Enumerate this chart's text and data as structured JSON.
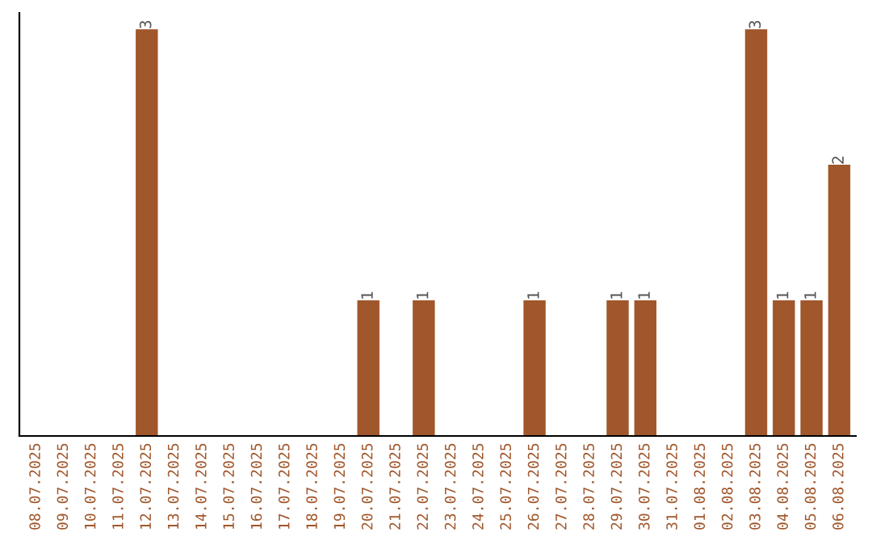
{
  "chart_data": {
    "type": "bar",
    "categories": [
      "08.07.2025",
      "09.07.2025",
      "10.07.2025",
      "11.07.2025",
      "12.07.2025",
      "13.07.2025",
      "14.07.2025",
      "15.07.2025",
      "16.07.2025",
      "17.07.2025",
      "18.07.2025",
      "19.07.2025",
      "20.07.2025",
      "21.07.2025",
      "22.07.2025",
      "23.07.2025",
      "24.07.2025",
      "25.07.2025",
      "26.07.2025",
      "27.07.2025",
      "28.07.2025",
      "29.07.2025",
      "30.07.2025",
      "31.07.2025",
      "01.08.2025",
      "02.08.2025",
      "03.08.2025",
      "04.08.2025",
      "05.08.2025",
      "06.08.2025"
    ],
    "values": [
      0,
      0,
      0,
      0,
      3,
      0,
      0,
      0,
      0,
      0,
      0,
      0,
      1,
      0,
      1,
      0,
      0,
      0,
      1,
      0,
      0,
      1,
      1,
      0,
      0,
      0,
      3,
      1,
      1,
      2
    ],
    "value_labels": [
      null,
      null,
      null,
      null,
      "3",
      null,
      null,
      null,
      null,
      null,
      null,
      null,
      "1",
      null,
      "1",
      null,
      null,
      null,
      "1",
      null,
      null,
      "1",
      "1",
      null,
      null,
      null,
      "3",
      "1",
      "1",
      "2"
    ],
    "color": "#a0572b",
    "grid": false,
    "legend": false
  }
}
